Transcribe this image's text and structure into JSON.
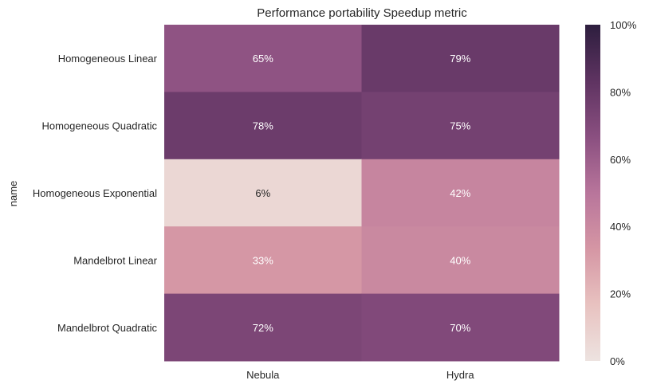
{
  "chart_data": {
    "type": "heatmap",
    "title": "Performance portability Speedup metric",
    "ylabel": "name",
    "xlabel": "",
    "rows": [
      "Homogeneous Linear",
      "Homogeneous Quadratic",
      "Homogeneous Exponential",
      "Mandelbrot Linear",
      "Mandelbrot Quadratic"
    ],
    "columns": [
      "Nebula",
      "Hydra"
    ],
    "values": [
      [
        65,
        79
      ],
      [
        78,
        75
      ],
      [
        6,
        42
      ],
      [
        33,
        40
      ],
      [
        72,
        70
      ]
    ],
    "value_suffix": "%",
    "colorbar": {
      "range": [
        0,
        100
      ],
      "ticks": [
        "0%",
        "20%",
        "40%",
        "60%",
        "80%",
        "100%"
      ],
      "colormap": [
        "#ede3e0",
        "#e8c2c0",
        "#d596a4",
        "#b8759b",
        "#8a4f80",
        "#5e3361",
        "#2d1e3e"
      ]
    },
    "grid": false
  }
}
